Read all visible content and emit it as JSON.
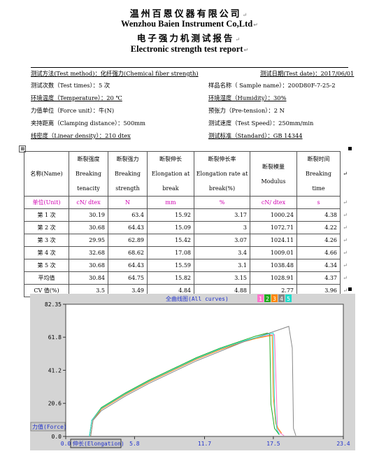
{
  "header": {
    "company_cn": "温州百恩仪器有限公司",
    "company_en": "Wenzhou Baien Instrument Co,Ltd",
    "report_cn": "电子强力机测试报告",
    "report_en": "Electronic strength test report",
    "return_mark": "↵"
  },
  "info": {
    "test_method": "测试方法(Test method)：化纤强力(Chemical fiber strength)",
    "test_date": "测试日期(Test date)：2017/06/01",
    "test_times": "测试次数（Test times）：5 次",
    "sample_name": "样品名称（ Sample name）：200D80F-7-25-2",
    "temperature": "环境温度（Temperature）：20 ℃",
    "humidity": "环境湿度（Humidity）：30%",
    "force_unit": "力值单位（Force unit）：牛(N)",
    "pretension": "预张力（Pre-tension）：2 N",
    "clamping": "夹持距离（Clamping distance）：500mm",
    "test_speed": "测试速度（Test Speed）：250mm/min",
    "linear_density": "线密度（Linear density）：210 dtex",
    "standard": "测试标准（Standard）：GB 14344"
  },
  "table": {
    "anchor_icon": "⊞",
    "headers": [
      "名称(Name)",
      "断裂强度 Breaking tenacity",
      "断裂强力 Breaking strength",
      "断裂伸长 Elongation at break",
      "断裂伸长率 Elongation rate at break(%)",
      "断裂模量 Modulus",
      "断裂时间 Breaking time"
    ],
    "units": [
      "单位(Unit)",
      "cN/ dtex",
      "N",
      "mm",
      "%",
      "cN/ dtex",
      "s"
    ],
    "rows": [
      [
        "第 1 次",
        "30.19",
        "63.4",
        "15.92",
        "3.17",
        "1000.24",
        "4.38"
      ],
      [
        "第 2 次",
        "30.68",
        "64.43",
        "15.09",
        "3",
        "1072.71",
        "4.22"
      ],
      [
        "第 3 次",
        "29.95",
        "62.89",
        "15.42",
        "3.07",
        "1024.11",
        "4.26"
      ],
      [
        "第 4 次",
        "32.68",
        "68.62",
        "17.08",
        "3.4",
        "1009.01",
        "4.66"
      ],
      [
        "第 5 次",
        "30.68",
        "64.43",
        "15.59",
        "3.1",
        "1038.48",
        "4.34"
      ],
      [
        "平均值",
        "30.84",
        "64.75",
        "15.82",
        "3.15",
        "1028.91",
        "4.37"
      ],
      [
        "CV 值(%)",
        "3.5",
        "3.49",
        "4.84",
        "4.88",
        "2.77",
        "3.96"
      ]
    ]
  },
  "chart_data": {
    "type": "line",
    "title": "全曲线图(All curves)",
    "xlabel": "伸长(Elongation)",
    "ylabel": "力值(Force)",
    "xlim": [
      0.0,
      23.4
    ],
    "ylim": [
      0.0,
      82.35
    ],
    "xticks": [
      "0.0",
      "5.8",
      "11.7",
      "17.5",
      "23.4"
    ],
    "yticks": [
      "82.35",
      "61.8",
      "41.2",
      "20.6",
      "0.0"
    ],
    "grid": false,
    "legend": "top-center",
    "series": [
      {
        "name": "1",
        "color": "#ff77cc",
        "x": [
          2.0,
          2.2,
          3.0,
          5.0,
          7.0,
          9.0,
          11.0,
          13.0,
          15.0,
          16.5,
          17.2,
          17.6,
          17.75,
          17.85,
          18.1,
          18.4
        ],
        "y": [
          0.0,
          10.0,
          17.0,
          26.0,
          34.0,
          41.0,
          48.0,
          54.0,
          59.0,
          62.0,
          63.2,
          63.4,
          30.0,
          5.0,
          2.0,
          0.5
        ]
      },
      {
        "name": "2",
        "color": "#22aa22",
        "x": [
          2.0,
          2.2,
          3.0,
          5.0,
          7.0,
          9.0,
          11.0,
          13.0,
          15.0,
          16.0,
          17.0,
          17.2,
          17.3,
          17.6,
          17.8,
          18.0
        ],
        "y": [
          0.0,
          10.0,
          18.0,
          27.0,
          35.0,
          42.0,
          49.0,
          55.0,
          60.0,
          62.5,
          64.4,
          63.5,
          20.0,
          5.0,
          3.0,
          1.0
        ]
      },
      {
        "name": "3",
        "color": "#ff8800",
        "x": [
          2.1,
          2.3,
          3.0,
          5.0,
          7.0,
          9.0,
          11.0,
          13.0,
          15.0,
          16.0,
          17.0,
          17.4,
          17.5,
          17.7,
          17.9,
          18.2
        ],
        "y": [
          0.0,
          10.0,
          17.0,
          26.0,
          34.0,
          41.0,
          48.0,
          54.0,
          59.0,
          61.0,
          62.5,
          62.9,
          25.0,
          8.0,
          5.0,
          2.0
        ]
      },
      {
        "name": "4",
        "color": "#888888",
        "x": [
          2.1,
          2.3,
          3.0,
          5.0,
          7.0,
          9.0,
          11.0,
          13.0,
          15.0,
          17.0,
          18.0,
          18.8,
          19.1,
          19.2,
          19.4
        ],
        "y": [
          0.0,
          10.0,
          16.0,
          25.0,
          33.0,
          40.0,
          47.0,
          53.0,
          59.0,
          64.0,
          66.5,
          68.6,
          55.0,
          5.0,
          0.5
        ]
      },
      {
        "name": "5",
        "color": "#22ddcc",
        "x": [
          2.0,
          2.2,
          3.0,
          5.0,
          7.0,
          9.0,
          11.0,
          13.0,
          15.0,
          16.5,
          17.2,
          17.5,
          17.6,
          17.8,
          18.0
        ],
        "y": [
          0.0,
          10.0,
          17.5,
          26.5,
          34.5,
          41.5,
          48.5,
          54.5,
          59.5,
          62.5,
          64.0,
          64.4,
          20.0,
          4.0,
          1.5
        ]
      }
    ]
  }
}
